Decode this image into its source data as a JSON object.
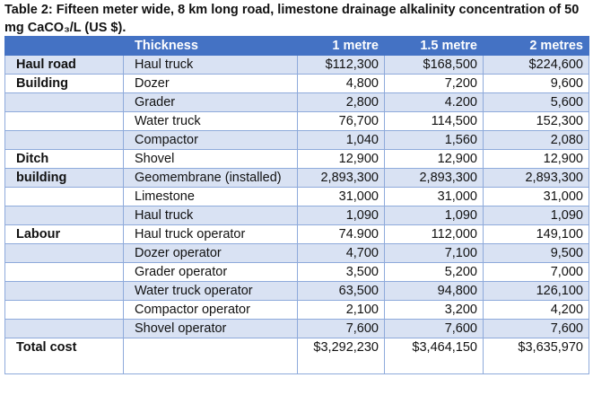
{
  "title": "Table 2: Fifteen meter wide, 8 km long road, limestone drainage alkalinity concentration of 50 mg CaCO₃/L (US $).",
  "headers": [
    "",
    "Thickness",
    "1 metre",
    "1.5 metre",
    "2 metres"
  ],
  "rows": [
    [
      "Haul road",
      "Haul truck",
      "$112,300",
      "$168,500",
      "$224,600"
    ],
    [
      "Building",
      "Dozer",
      "4,800",
      "7,200",
      "9,600"
    ],
    [
      "",
      "Grader",
      "2,800",
      "4.200",
      "5,600"
    ],
    [
      "",
      "Water truck",
      "76,700",
      "114,500",
      "152,300"
    ],
    [
      "",
      "Compactor",
      "1,040",
      "1,560",
      "2,080"
    ],
    [
      "Ditch",
      "Shovel",
      "12,900",
      "12,900",
      "12,900"
    ],
    [
      "building",
      "Geomembrane (installed)",
      "2,893,300",
      "2,893,300",
      "2,893,300"
    ],
    [
      "",
      "Limestone",
      "31,000",
      "31,000",
      "31,000"
    ],
    [
      "",
      "Haul truck",
      "1,090",
      "1,090",
      "1,090"
    ],
    [
      "Labour",
      "Haul truck operator",
      "74.900",
      "112,000",
      "149,100"
    ],
    [
      "",
      "Dozer operator",
      "4,700",
      "7,100",
      "9,500"
    ],
    [
      "",
      "Grader operator",
      "3,500",
      "5,200",
      "7,000"
    ],
    [
      "",
      "Water truck operator",
      "63,500",
      "94,800",
      "126,100"
    ],
    [
      "",
      "Compactor operator",
      "2,100",
      "3,200",
      "4,200"
    ],
    [
      "",
      "Shovel operator",
      "7,600",
      "7,600",
      "7,600"
    ],
    [
      "Total cost",
      "",
      "$3,292,230",
      "$3,464,150",
      "$3,635,970"
    ]
  ]
}
